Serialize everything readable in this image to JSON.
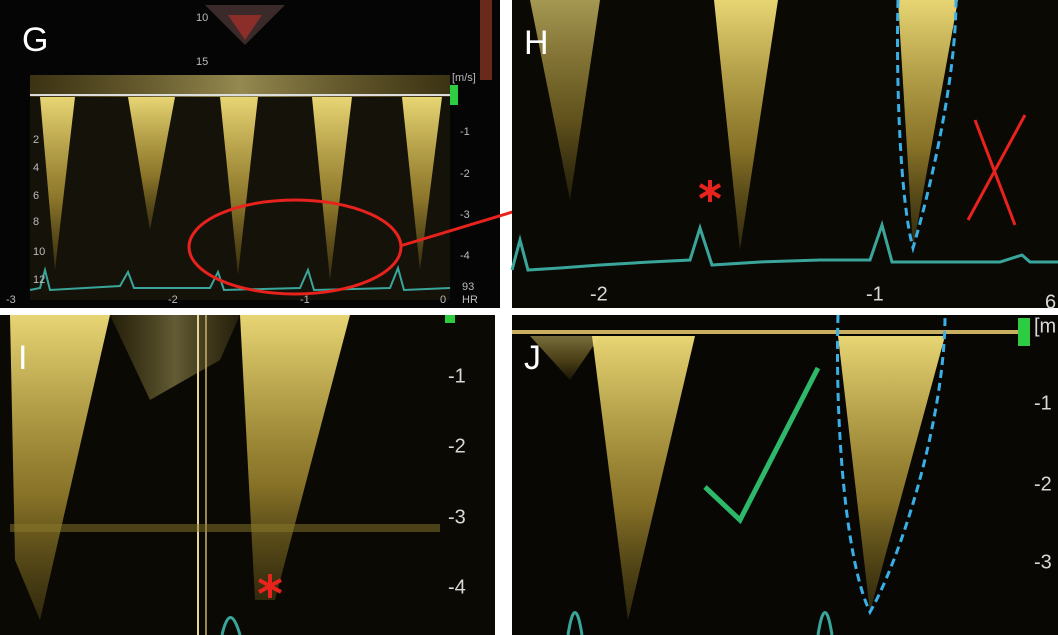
{
  "panels": [
    {
      "label": "G",
      "scale_unit": "[m/s]",
      "right_ticks": [
        "-1",
        "-2",
        "-3",
        "-4"
      ],
      "left_ticks": [
        "2",
        "4",
        "6",
        "8",
        "10",
        "12"
      ],
      "time_ticks": [
        "-3",
        "-2",
        "-1",
        "0"
      ],
      "heart_rate": "93",
      "heart_rate_label": "HR",
      "thumbnail_ticks": [
        "10",
        "15"
      ]
    },
    {
      "label": "H",
      "time_ticks": [
        "-2",
        "-1",
        "6"
      ]
    },
    {
      "label": "I",
      "right_ticks": [
        "-1",
        "-2",
        "-3",
        "-4"
      ]
    },
    {
      "label": "J",
      "scale_unit": "[m",
      "right_ticks": [
        "-1",
        "-2",
        "-3"
      ]
    }
  ]
}
